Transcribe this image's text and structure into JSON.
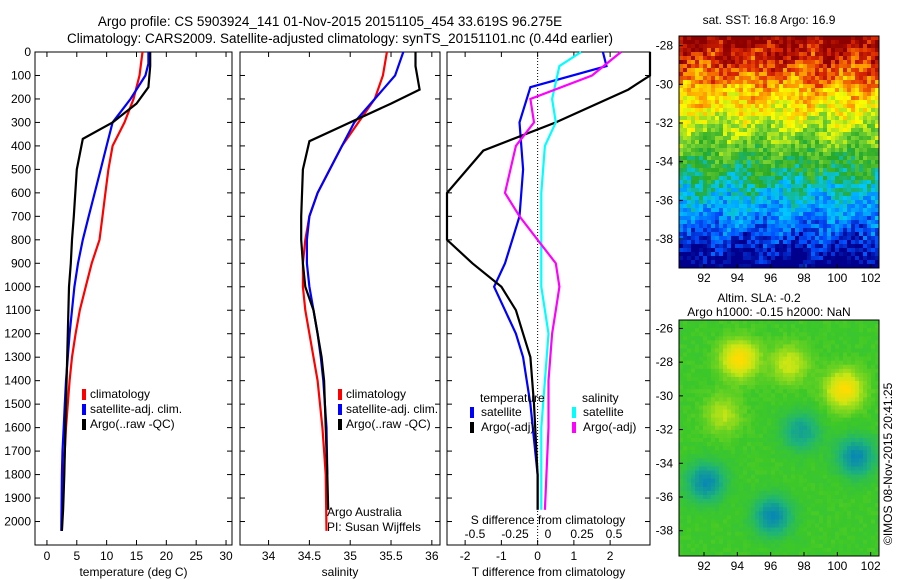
{
  "header": {
    "line1": "Argo profile: CS 5903924_141 01-Nov-2015 20151105_454 33.619S 96.275E",
    "line2": "Climatology: CARS2009. Satellite-adjusted climatology: synTS_20151101.nc (0.44d earlier)"
  },
  "side_label": "©IMOS 08-Nov-2015 20:41:25",
  "chart_data": [
    {
      "type": "line",
      "xlabel": "temperature (deg C)",
      "ylabel": "",
      "xlim": [
        -2,
        31
      ],
      "ylim": [
        2100,
        0
      ],
      "xticks": [
        "0",
        "5",
        "10",
        "15",
        "20",
        "25",
        "30"
      ],
      "xtick_values": [
        0,
        5,
        10,
        15,
        20,
        25,
        30
      ],
      "yticks": [
        "0",
        "100",
        "200",
        "300",
        "400",
        "500",
        "600",
        "700",
        "800",
        "900",
        "1000",
        "1100",
        "1200",
        "1300",
        "1400",
        "1500",
        "1600",
        "1700",
        "1800",
        "1900",
        "2000"
      ],
      "ytick_values": [
        0,
        100,
        200,
        300,
        400,
        500,
        600,
        700,
        800,
        900,
        1000,
        1100,
        1200,
        1300,
        1400,
        1500,
        1600,
        1700,
        1800,
        1900,
        2000
      ],
      "legend": [
        "climatology",
        "satellite-adj. clim.",
        "Argo(..raw -QC)"
      ],
      "series": [
        {
          "name": "climatology",
          "color": "#ff0000",
          "x": [
            16,
            15.5,
            14.5,
            13,
            11,
            10.3,
            9.8,
            9.3,
            8.8,
            7.5,
            6.5,
            5.5,
            4.8,
            4.2,
            3.8,
            3.5,
            3.2,
            3.0,
            2.8,
            2.6,
            2.5
          ],
          "y": [
            0,
            100,
            200,
            300,
            400,
            500,
            600,
            700,
            800,
            900,
            1000,
            1100,
            1200,
            1300,
            1400,
            1500,
            1600,
            1700,
            1800,
            1900,
            2040
          ]
        },
        {
          "name": "satellite-adj. clim.",
          "color": "#0000ff",
          "x": [
            17,
            17,
            16.5,
            14,
            11,
            10,
            9,
            8,
            7,
            6,
            5.2,
            4.6,
            4.2,
            3.8,
            3.5,
            3.2,
            3.0,
            2.8,
            2.6,
            2.5,
            2.4
          ],
          "y": [
            0,
            50,
            100,
            200,
            300,
            400,
            500,
            600,
            700,
            800,
            900,
            1000,
            1100,
            1200,
            1300,
            1400,
            1500,
            1600,
            1700,
            1800,
            2040
          ]
        },
        {
          "name": "Argo(..raw -QC)",
          "color": "#000000",
          "x": [
            17.3,
            17.3,
            17,
            15,
            11,
            6,
            5,
            4.5,
            4.2,
            4,
            3.7,
            3.5,
            3.3,
            3.1,
            2.9,
            2.7,
            2.5
          ],
          "y": [
            0,
            60,
            150,
            220,
            300,
            370,
            500,
            700,
            800,
            900,
            1000,
            1200,
            1400,
            1600,
            1800,
            1950,
            2040
          ]
        }
      ]
    },
    {
      "type": "line",
      "xlabel": "salinity",
      "ylabel": "",
      "xlim": [
        33.65,
        36.1
      ],
      "ylim": [
        2100,
        0
      ],
      "xticks": [
        "34",
        "34.5",
        "35",
        "35.5",
        "36"
      ],
      "xtick_values": [
        34,
        34.5,
        35,
        35.5,
        36
      ],
      "legend": [
        "climatology",
        "satellite-adj. clim.",
        "Argo(..raw -QC)"
      ],
      "annotation": [
        "Argo Australia",
        "PI: Susan Wijffels"
      ],
      "series": [
        {
          "name": "climatology",
          "color": "#ff0000",
          "x": [
            35.45,
            35.4,
            35.3,
            35.1,
            34.9,
            34.75,
            34.6,
            34.5,
            34.45,
            34.42,
            34.42,
            34.45,
            34.5,
            34.55,
            34.6,
            34.63,
            34.66,
            34.68,
            34.7,
            34.71
          ],
          "y": [
            0,
            100,
            200,
            300,
            400,
            500,
            600,
            700,
            800,
            900,
            1000,
            1100,
            1200,
            1300,
            1400,
            1500,
            1600,
            1700,
            1800,
            2040
          ]
        },
        {
          "name": "satellite-adj. clim.",
          "color": "#0000ff",
          "x": [
            35.65,
            35.55,
            35.3,
            35.05,
            34.9,
            34.75,
            34.6,
            34.5,
            34.47,
            34.47,
            34.5,
            34.55,
            34.6,
            34.64,
            34.67,
            34.69,
            34.71,
            34.72
          ],
          "y": [
            0,
            100,
            200,
            300,
            400,
            500,
            600,
            700,
            800,
            900,
            1000,
            1100,
            1200,
            1300,
            1400,
            1500,
            1600,
            1800
          ]
        },
        {
          "name": "Argo(..raw -QC)",
          "color": "#000000",
          "x": [
            35.8,
            35.8,
            35.85,
            35.5,
            35.0,
            34.5,
            34.42,
            34.4,
            34.4,
            34.42,
            34.45,
            34.55,
            34.6,
            34.65,
            34.68,
            34.7,
            34.72,
            34.73
          ],
          "y": [
            0,
            60,
            160,
            220,
            300,
            380,
            500,
            700,
            800,
            900,
            1000,
            1100,
            1200,
            1300,
            1400,
            1600,
            1800,
            1950
          ]
        }
      ]
    },
    {
      "type": "line",
      "xlabel": "T difference from climatology",
      "xlabel2": "S difference from climatology",
      "ylabel": "",
      "xlim": [
        -2.5,
        3.1
      ],
      "ylim": [
        2100,
        0
      ],
      "xticks": [
        "-2",
        "-1",
        "0",
        "1",
        "2"
      ],
      "xtick_values": [
        -2,
        -1,
        0,
        1,
        2
      ],
      "xticks2": [
        "-0.5",
        "-0.25",
        "0",
        "0.25",
        "0.5"
      ],
      "legend_title_t": "temperature",
      "legend_title_s": "salinity",
      "legend": [
        "satellite",
        "Argo(-adj)",
        "satellite",
        "Argo(-adj)"
      ],
      "series": [
        {
          "name": "satellite",
          "color": "#0000ff",
          "x": [
            1.8,
            1.9,
            -0.2,
            -0.5,
            -0.4,
            -0.5,
            -0.7,
            -0.9,
            -1.2,
            -0.9,
            -0.6,
            -0.4,
            -0.2,
            0,
            0
          ],
          "y": [
            0,
            60,
            150,
            300,
            500,
            700,
            800,
            900,
            1000,
            1100,
            1200,
            1300,
            1500,
            1800,
            1950
          ]
        },
        {
          "name": "Argo(-adj)",
          "color": "#000000",
          "x": [
            3.1,
            3.2,
            2.5,
            0.5,
            -1.5,
            -2.5,
            -2.5,
            -1.8,
            -1.0,
            -0.6,
            -0.4,
            -0.2,
            -0.1,
            0,
            0
          ],
          "y": [
            0,
            100,
            160,
            300,
            420,
            600,
            800,
            900,
            1000,
            1100,
            1200,
            1300,
            1500,
            1800,
            1950
          ]
        },
        {
          "name": "satellite",
          "color": "#00ffff",
          "x": [
            1.2,
            0.6,
            0.4,
            0.5,
            0.2,
            0.1,
            0.1,
            0.1,
            0.1,
            0.2,
            0.3,
            0.2,
            0.1,
            0.1,
            0.1
          ],
          "y": [
            0,
            60,
            200,
            300,
            400,
            600,
            800,
            900,
            1000,
            1100,
            1200,
            1400,
            1600,
            1800,
            1950
          ]
        },
        {
          "name": "Argo(-adj)",
          "color": "#ff00ff",
          "x": [
            2.3,
            1.5,
            -0.2,
            -0.1,
            -0.6,
            -0.9,
            -0.5,
            0,
            0.5,
            0.6,
            0.5,
            0.4,
            0.3,
            0.3,
            0.2
          ],
          "y": [
            0,
            100,
            200,
            300,
            400,
            600,
            700,
            800,
            900,
            1000,
            1100,
            1200,
            1400,
            1600,
            1950
          ]
        }
      ]
    },
    {
      "type": "heatmap",
      "title": "sat. SST: 16.8 Argo: 16.9",
      "xlim": [
        90.5,
        102.5
      ],
      "ylim": [
        -39.5,
        -27.5
      ],
      "xticks": [
        "92",
        "94",
        "96",
        "98",
        "100",
        "102"
      ],
      "xtick_values": [
        92,
        94,
        96,
        98,
        100,
        102
      ],
      "yticks": [
        "-28",
        "-30",
        "-32",
        "-34",
        "-36",
        "-38"
      ],
      "ytick_values": [
        -28,
        -30,
        -32,
        -34,
        -36,
        -38
      ]
    },
    {
      "type": "heatmap",
      "title": "Altim. SLA: -0.2",
      "subtitle": "Argo h1000: -0.15 h2000: NaN",
      "xlim": [
        90.5,
        102.5
      ],
      "ylim": [
        -39.5,
        -25.5
      ],
      "xticks": [
        "92",
        "94",
        "96",
        "98",
        "100",
        "102"
      ],
      "xtick_values": [
        92,
        94,
        96,
        98,
        100,
        102
      ],
      "yticks": [
        "-26",
        "-28",
        "-30",
        "-32",
        "-34",
        "-36",
        "-38"
      ],
      "ytick_values": [
        -26,
        -28,
        -30,
        -32,
        -34,
        -36,
        -38
      ]
    }
  ]
}
